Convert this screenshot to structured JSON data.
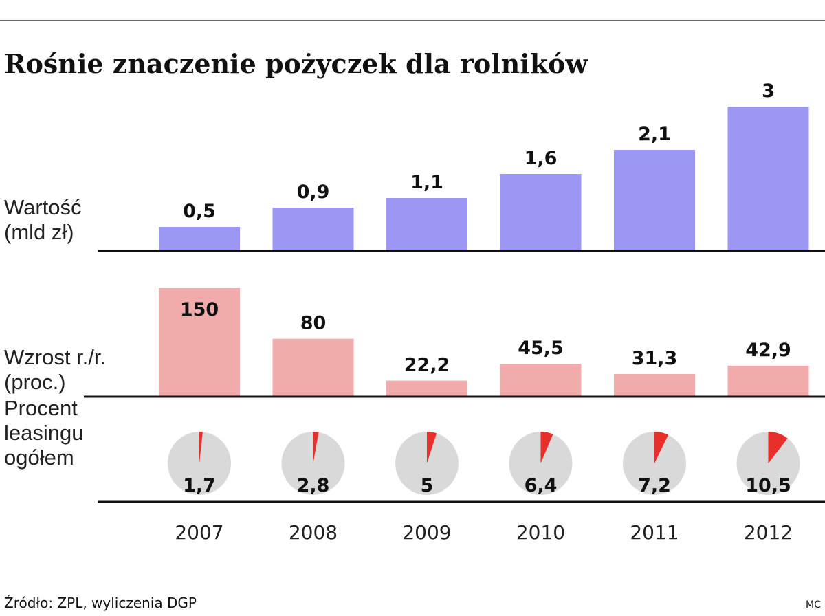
{
  "title": "Rośnie znaczenie pożyczek dla rolników",
  "source": "Źródło: ZPL, wyliczenia DGP",
  "credit": "MC",
  "chart_data": [
    {
      "type": "bar",
      "label": [
        "Wartość",
        "(mld zł)"
      ],
      "categories": [
        "2007",
        "2008",
        "2009",
        "2010",
        "2011",
        "2012"
      ],
      "values": [
        0.5,
        0.9,
        1.1,
        1.6,
        2.1,
        3
      ],
      "value_labels": [
        "0,5",
        "0,9",
        "1,1",
        "1,6",
        "2,1",
        "3"
      ],
      "color": "#9c96f5"
    },
    {
      "type": "bar",
      "label": [
        "Wzrost r./r.",
        "(proc.)"
      ],
      "values": [
        150,
        80,
        22.2,
        45.5,
        31.3,
        42.9
      ],
      "value_labels": [
        "150",
        "80",
        "22,2",
        "45,5",
        "31,3",
        "42,9"
      ],
      "color": "#f2abab"
    },
    {
      "type": "pie",
      "label": [
        "Procent",
        "leasingu",
        "ogółem"
      ],
      "values": [
        1.7,
        2.8,
        5,
        6.4,
        7.2,
        10.5
      ],
      "value_labels": [
        "1,7",
        "2,8",
        "5",
        "6,4",
        "7,2",
        "10,5"
      ],
      "color": "#e8302a",
      "track_color": "#d9d9d9"
    }
  ]
}
